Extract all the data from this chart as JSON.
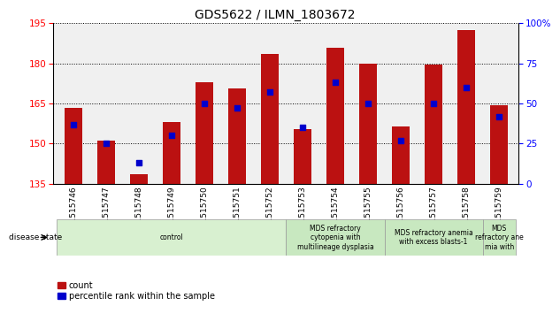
{
  "title": "GDS5622 / ILMN_1803672",
  "samples": [
    "GSM1515746",
    "GSM1515747",
    "GSM1515748",
    "GSM1515749",
    "GSM1515750",
    "GSM1515751",
    "GSM1515752",
    "GSM1515753",
    "GSM1515754",
    "GSM1515755",
    "GSM1515756",
    "GSM1515757",
    "GSM1515758",
    "GSM1515759"
  ],
  "counts": [
    163.5,
    151.0,
    138.5,
    158.0,
    173.0,
    170.5,
    183.5,
    155.5,
    186.0,
    180.0,
    156.5,
    179.5,
    192.5,
    164.5
  ],
  "percentile_ranks": [
    37,
    25,
    13,
    30,
    50,
    47,
    57,
    35,
    63,
    50,
    27,
    50,
    60,
    42
  ],
  "ylim_left": [
    135,
    195
  ],
  "ylim_right": [
    0,
    100
  ],
  "yticks_left": [
    135,
    150,
    165,
    180,
    195
  ],
  "yticks_right": [
    0,
    25,
    50,
    75,
    100
  ],
  "bar_color": "#bb1111",
  "dot_color": "#0000cc",
  "bar_bottom": 135,
  "disease_groups": [
    {
      "label": "control",
      "start": 0,
      "end": 7,
      "color": "#d8f0d0"
    },
    {
      "label": "MDS refractory\ncytopenia with\nmultilineage dysplasia",
      "start": 7,
      "end": 10,
      "color": "#c8e8c0"
    },
    {
      "label": "MDS refractory anemia\nwith excess blasts-1",
      "start": 10,
      "end": 13,
      "color": "#c8e8c0"
    },
    {
      "label": "MDS\nrefractory ane\nmia with",
      "start": 13,
      "end": 14,
      "color": "#c8e8c0"
    }
  ]
}
